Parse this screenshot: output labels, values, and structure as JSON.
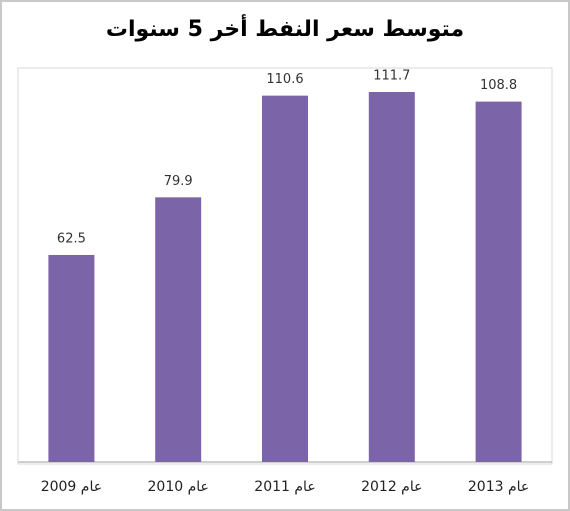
{
  "chart_data": {
    "type": "bar",
    "title": "متوسط سعر النفط أخر 5 سنوات",
    "categories": [
      "عام 2009",
      "عام 2010",
      "عام 2011",
      "عام 2012",
      "عام 2013"
    ],
    "values": [
      62.5,
      79.9,
      110.6,
      111.7,
      108.8
    ],
    "color": "#7b64a8"
  }
}
